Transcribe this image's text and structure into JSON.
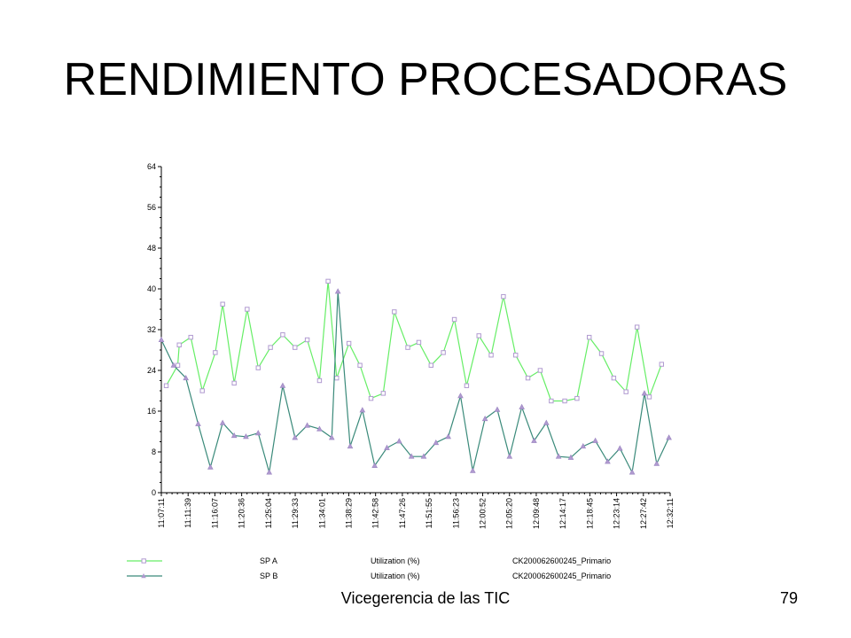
{
  "slide": {
    "title": "RENDIMIENTO PROCESADORAS",
    "footer": "Vicegerencia de las TIC",
    "page_number": "79"
  },
  "chart_data": {
    "type": "line",
    "title": "",
    "xlabel": "",
    "ylabel": "",
    "ylim": [
      0,
      64
    ],
    "y_ticks": [
      0,
      8,
      16,
      24,
      32,
      40,
      48,
      56,
      64
    ],
    "x_tick_labels": [
      "11:07:11",
      "11:11:39",
      "11:16:07",
      "11:20:36",
      "11:25:04",
      "11:29:33",
      "11:34:01",
      "11:38:29",
      "11:42:58",
      "11:47:26",
      "11:51:55",
      "11:56:23",
      "12:00:52",
      "12:05:20",
      "12:09:48",
      "12:14:17",
      "12:18:45",
      "12:23:14",
      "12:27:42",
      "12:32:11"
    ],
    "grid": false,
    "legend_position": "bottom",
    "series": [
      {
        "name": "SP A",
        "metric": "Utilization (%)",
        "object": "CK200062600245_Primario",
        "color": "#66ee66",
        "marker": "square",
        "marker_color": "#b09ad0",
        "points": [
          [
            0.2,
            21
          ],
          [
            0.67,
            25
          ],
          [
            0.73,
            29
          ],
          [
            1.2,
            30.5
          ],
          [
            1.67,
            20
          ],
          [
            2.2,
            27.5
          ],
          [
            2.5,
            37
          ],
          [
            2.97,
            21.5
          ],
          [
            3.5,
            36
          ],
          [
            3.95,
            24.5
          ],
          [
            4.45,
            28.5
          ],
          [
            4.95,
            31
          ],
          [
            5.45,
            28.5
          ],
          [
            5.95,
            30
          ],
          [
            6.45,
            22
          ],
          [
            6.8,
            41.5
          ],
          [
            7.15,
            22.5
          ],
          [
            7.65,
            29.3
          ],
          [
            8.1,
            25
          ],
          [
            8.55,
            18.5
          ],
          [
            9.05,
            19.5
          ],
          [
            9.5,
            35.5
          ],
          [
            10.05,
            28.5
          ],
          [
            10.5,
            29.5
          ],
          [
            11.0,
            25
          ],
          [
            11.5,
            27.5
          ],
          [
            11.95,
            34
          ],
          [
            12.45,
            21
          ],
          [
            12.95,
            30.8
          ],
          [
            13.45,
            27
          ],
          [
            13.95,
            38.5
          ],
          [
            14.45,
            27
          ],
          [
            14.95,
            22.5
          ],
          [
            15.45,
            24
          ],
          [
            15.9,
            18
          ],
          [
            16.45,
            18
          ],
          [
            16.95,
            18.5
          ],
          [
            17.45,
            30.5
          ],
          [
            17.95,
            27.3
          ],
          [
            18.45,
            22.5
          ],
          [
            18.95,
            19.8
          ],
          [
            19.4,
            32.5
          ],
          [
            19.9,
            18.8
          ],
          [
            20.4,
            25.2
          ]
        ]
      },
      {
        "name": "SP B",
        "metric": "Utilization (%)",
        "object": "CK200062600245_Primario",
        "color": "#3a8a7a",
        "marker": "triangle",
        "marker_color": "#b09ad0",
        "points": [
          [
            0,
            30
          ],
          [
            0.5,
            25
          ],
          [
            1.0,
            22.5
          ],
          [
            1.5,
            13.5
          ],
          [
            2.0,
            5
          ],
          [
            2.5,
            13.7
          ],
          [
            2.97,
            11.2
          ],
          [
            3.45,
            11
          ],
          [
            3.95,
            11.7
          ],
          [
            4.4,
            4
          ],
          [
            4.95,
            21
          ],
          [
            5.45,
            10.8
          ],
          [
            5.95,
            13.2
          ],
          [
            6.45,
            12.5
          ],
          [
            6.95,
            10.8
          ],
          [
            7.2,
            39.5
          ],
          [
            7.7,
            9.1
          ],
          [
            8.2,
            16.2
          ],
          [
            8.7,
            5.3
          ],
          [
            9.2,
            8.8
          ],
          [
            9.7,
            10.1
          ],
          [
            10.2,
            7.1
          ],
          [
            10.7,
            7.1
          ],
          [
            11.2,
            9.8
          ],
          [
            11.7,
            11
          ],
          [
            12.2,
            19
          ],
          [
            12.7,
            4.3
          ],
          [
            13.2,
            14.5
          ],
          [
            13.7,
            16.3
          ],
          [
            14.2,
            7.1
          ],
          [
            14.7,
            16.8
          ],
          [
            15.2,
            10.2
          ],
          [
            15.7,
            13.7
          ],
          [
            16.2,
            7.1
          ],
          [
            16.7,
            6.9
          ],
          [
            17.2,
            9.1
          ],
          [
            17.7,
            10.2
          ],
          [
            18.2,
            6.1
          ],
          [
            18.7,
            8.7
          ],
          [
            19.2,
            4
          ],
          [
            19.7,
            19.5
          ],
          [
            20.2,
            5.7
          ],
          [
            20.7,
            10.8
          ]
        ]
      }
    ]
  }
}
